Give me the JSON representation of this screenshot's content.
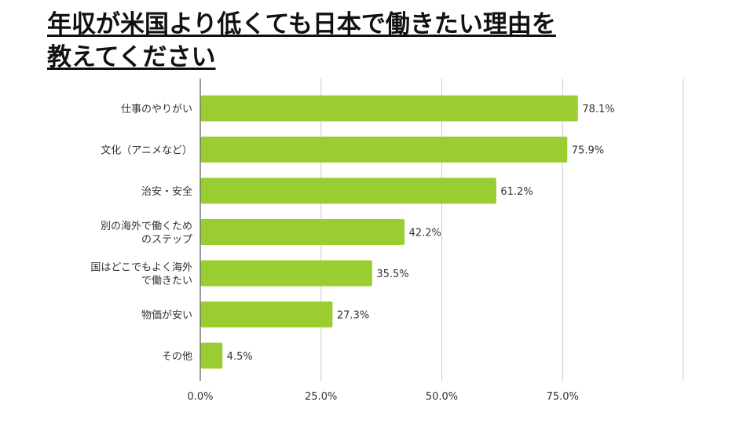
{
  "title_line1": "年収が米国より低くても日本で働きたい理由を",
  "title_line2": "教えてください",
  "chart_data": {
    "type": "bar",
    "orientation": "horizontal",
    "categories": [
      [
        "仕事のやりがい"
      ],
      [
        "文化（アニメなど）"
      ],
      [
        "治安・安全"
      ],
      [
        "別の海外で働くため",
        "のステップ"
      ],
      [
        "国はどこでもよく海外",
        "で働きたい"
      ],
      [
        "物価が安い"
      ],
      [
        "その他"
      ]
    ],
    "values": [
      78.1,
      75.9,
      61.2,
      42.2,
      35.5,
      27.3,
      4.5
    ],
    "value_labels": [
      "78.1%",
      "75.9%",
      "61.2%",
      "42.2%",
      "35.5%",
      "27.3%",
      "4.5%"
    ],
    "x_ticks": [
      0,
      25,
      50,
      75,
      100
    ],
    "x_tick_labels": [
      "0.0%",
      "25.0%",
      "50.0%",
      "75.0%",
      ""
    ],
    "xlim": [
      0,
      100
    ],
    "bar_color": "#9ACD32",
    "grid": true
  }
}
